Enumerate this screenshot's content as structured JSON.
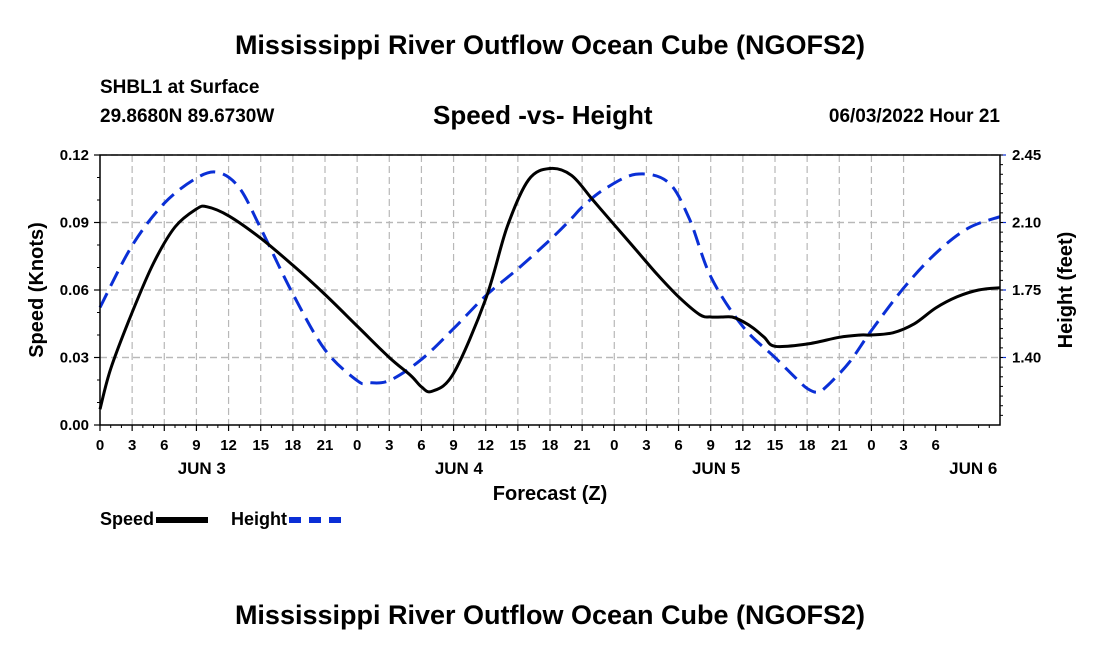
{
  "title": "Mississippi River Outflow Ocean Cube (NGOFS2)",
  "header": {
    "station": "SHBL1 at Surface",
    "coords": "29.8680N  89.6730W",
    "subtitle": "Speed -vs- Height",
    "datetime": "06/03/2022 Hour 21"
  },
  "legend": {
    "speed_label": "Speed",
    "height_label": "Height"
  },
  "colors": {
    "speed": "#000000",
    "height": "#0a2fd6",
    "grid": "#b8b8b8"
  },
  "chart_data": {
    "type": "line",
    "title": "Speed -vs- Height",
    "xlabel": "Forecast (Z)",
    "ylabel": "Speed (Knots)",
    "ylabel_right": "Height (feet)",
    "xlim": [
      0,
      84
    ],
    "ylim": [
      0,
      0.12
    ],
    "ylim_right": [
      1.05,
      2.45
    ],
    "y_ticks": [
      "0.00",
      "0.03",
      "0.06",
      "0.09",
      "0.12"
    ],
    "y_ticks_right": [
      "1.40",
      "1.75",
      "2.10",
      "2.45"
    ],
    "x_tick_labels": [
      "0",
      "3",
      "6",
      "9",
      "12",
      "15",
      "18",
      "21",
      "0",
      "3",
      "6",
      "9",
      "12",
      "15",
      "18",
      "21",
      "0",
      "3",
      "6",
      "9",
      "12",
      "15",
      "18",
      "21",
      "0",
      "3",
      "6"
    ],
    "day_labels": [
      {
        "label": "JUN 3",
        "hour": 9.5
      },
      {
        "label": "JUN 4",
        "hour": 33.5
      },
      {
        "label": "JUN 5",
        "hour": 57.5
      },
      {
        "label": "JUN 6",
        "hour": 81.5
      }
    ],
    "grid": true,
    "series": [
      {
        "name": "Speed",
        "axis": "left",
        "style": "solid",
        "x": [
          0,
          1,
          3,
          5,
          7,
          9,
          10,
          12,
          15,
          18,
          21,
          24,
          27,
          29,
          30,
          31,
          33,
          36,
          38,
          40,
          42,
          44,
          46,
          48,
          50,
          52,
          54,
          56,
          57,
          58,
          59,
          60,
          61,
          62,
          63,
          66,
          69,
          71,
          72,
          74,
          76,
          78,
          80,
          82,
          84
        ],
        "values": [
          0.007,
          0.025,
          0.05,
          0.072,
          0.088,
          0.096,
          0.097,
          0.093,
          0.083,
          0.071,
          0.058,
          0.044,
          0.03,
          0.022,
          0.017,
          0.015,
          0.023,
          0.056,
          0.088,
          0.109,
          0.114,
          0.111,
          0.1,
          0.089,
          0.078,
          0.067,
          0.057,
          0.049,
          0.048,
          0.048,
          0.048,
          0.046,
          0.043,
          0.039,
          0.035,
          0.036,
          0.039,
          0.04,
          0.04,
          0.041,
          0.045,
          0.052,
          0.057,
          0.06,
          0.061
        ]
      },
      {
        "name": "Height",
        "axis": "right",
        "style": "dashed",
        "x": [
          0,
          3,
          6,
          9,
          11,
          13,
          15,
          18,
          21,
          24,
          25,
          27,
          30,
          33,
          36,
          39,
          42,
          44,
          45,
          47,
          50,
          53,
          55,
          57,
          60,
          63,
          65,
          66,
          67,
          68,
          70,
          72,
          75,
          78,
          81,
          84
        ],
        "values": [
          1.66,
          1.98,
          2.2,
          2.33,
          2.36,
          2.28,
          2.07,
          1.73,
          1.44,
          1.28,
          1.27,
          1.28,
          1.39,
          1.55,
          1.72,
          1.86,
          2.01,
          2.12,
          2.18,
          2.27,
          2.35,
          2.31,
          2.12,
          1.82,
          1.56,
          1.4,
          1.29,
          1.24,
          1.22,
          1.26,
          1.38,
          1.54,
          1.76,
          1.94,
          2.07,
          2.13
        ]
      }
    ]
  }
}
